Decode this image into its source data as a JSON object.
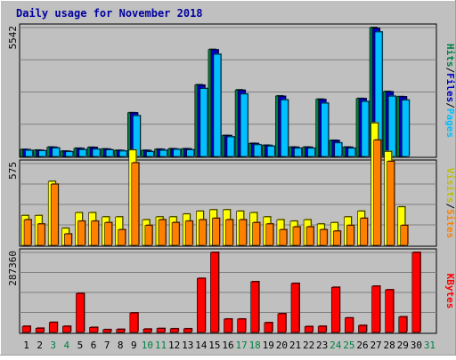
{
  "chart_data": {
    "type": "bar",
    "title": "Daily usage for November 2018",
    "categories": [
      "1",
      "2",
      "3",
      "4",
      "5",
      "6",
      "7",
      "8",
      "9",
      "10",
      "11",
      "12",
      "13",
      "14",
      "15",
      "16",
      "17",
      "18",
      "19",
      "20",
      "21",
      "22",
      "23",
      "24",
      "25",
      "26",
      "27",
      "28",
      "29",
      "30",
      "31"
    ],
    "weekend_days": [
      "3",
      "4",
      "10",
      "11",
      "17",
      "18",
      "24",
      "25",
      "31"
    ],
    "panels": [
      {
        "id": "top",
        "ymax": 5542,
        "ymax_label": "5542",
        "axis_labels": [
          {
            "text": "Hits",
            "color": "#008040"
          },
          {
            "text": "/",
            "color": "#000000"
          },
          {
            "text": "Files",
            "color": "#0000c0"
          },
          {
            "text": "/",
            "color": "#000000"
          },
          {
            "text": "Pages",
            "color": "#00c0ff"
          }
        ],
        "series": [
          {
            "name": "Hits",
            "color": "#008040",
            "values": [
              300,
              270,
              400,
              230,
              350,
              390,
              320,
              260,
              1880,
              260,
              310,
              330,
              330,
              3080,
              4600,
              900,
              2860,
              560,
              480,
              2600,
              400,
              400,
              2460,
              690,
              400,
              2490,
              5542,
              2790,
              2570,
              0
            ]
          },
          {
            "name": "Files",
            "color": "#0000c0",
            "values": [
              290,
              260,
              390,
              220,
              340,
              380,
              310,
              250,
              1870,
              250,
              300,
              320,
              320,
              3060,
              4580,
              890,
              2840,
              550,
              470,
              2580,
              390,
              390,
              2440,
              680,
              390,
              2480,
              5500,
              2770,
              2560,
              0
            ]
          },
          {
            "name": "Pages",
            "color": "#00c0ff",
            "values": [
              260,
              240,
              360,
              200,
              290,
              310,
              280,
              230,
              1750,
              200,
              260,
              300,
              280,
              2920,
              4390,
              840,
              2680,
              500,
              440,
              2430,
              350,
              350,
              2290,
              580,
              350,
              2360,
              5350,
              2590,
              2420,
              0
            ]
          }
        ]
      },
      {
        "id": "middle",
        "ymax": 575,
        "ymax_label": "575",
        "axis_labels": [
          {
            "text": "Visits",
            "color": "#c0c000"
          },
          {
            "text": "/",
            "color": "#000000"
          },
          {
            "text": "Sites",
            "color": "#ff8000"
          }
        ],
        "series": [
          {
            "name": "Visits",
            "color": "#ffff00",
            "values": [
              210,
              210,
              450,
              120,
              230,
              230,
              200,
              200,
              670,
              180,
              200,
              200,
              220,
              240,
              250,
              250,
              240,
              230,
              200,
              180,
              170,
              180,
              150,
              160,
              200,
              240,
              860,
              660,
              270,
              0
            ]
          },
          {
            "name": "Sites",
            "color": "#ff8000",
            "values": [
              180,
              150,
              430,
              80,
              170,
              170,
              160,
              110,
              580,
              140,
              180,
              160,
              170,
              180,
              190,
              180,
              180,
              160,
              150,
              110,
              130,
              130,
              110,
              100,
              140,
              190,
              740,
              590,
              140,
              0
            ]
          }
        ]
      },
      {
        "id": "bottom",
        "ymax": 287360,
        "ymax_label": "287360",
        "axis_labels": [
          {
            "text": "KBytes",
            "color": "#ff0000"
          }
        ],
        "series": [
          {
            "name": "KBytes",
            "color": "#ff0000",
            "values": [
              22000,
              15000,
              36000,
              22000,
              140000,
              18000,
              10000,
              11000,
              70000,
              12000,
              14000,
              13000,
              13000,
              194000,
              287360,
              48000,
              48000,
              182000,
              35000,
              67000,
              176000,
              21000,
              22000,
              162000,
              52000,
              25000,
              166000,
              153000,
              56000,
              287360
            ]
          }
        ]
      }
    ]
  }
}
